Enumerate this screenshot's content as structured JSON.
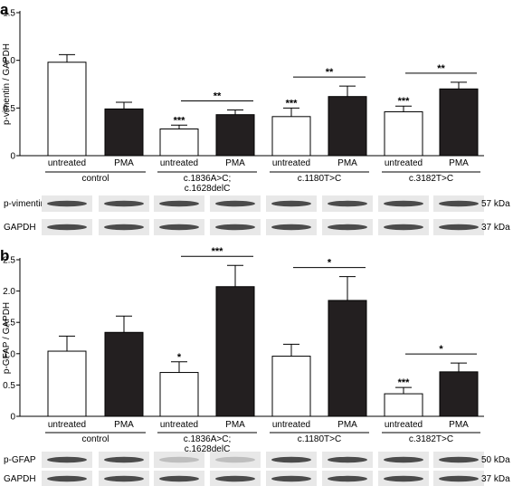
{
  "chart_data": [
    {
      "type": "bar",
      "panel": "a",
      "ylabel": "p-vimentin / GAPDH",
      "ylim": [
        0,
        1.5
      ],
      "yticks": [
        "0",
        "0.5",
        "1.0",
        "1.5"
      ],
      "categories": [
        "untreated",
        "PMA",
        "untreated",
        "PMA",
        "untreated",
        "PMA",
        "untreated",
        "PMA"
      ],
      "groups": [
        "control",
        "c.1836A>C;\nc.1628delC",
        "c.1180T>C",
        "c.3182T>C"
      ],
      "series": [
        {
          "values": [
            0.98,
            0.49,
            0.28,
            0.43,
            0.41,
            0.62,
            0.46,
            0.7
          ],
          "errors": [
            0.08,
            0.07,
            0.04,
            0.05,
            0.09,
            0.11,
            0.06,
            0.07
          ],
          "fill": [
            "#ffffff",
            "#231f20",
            "#ffffff",
            "#231f20",
            "#ffffff",
            "#231f20",
            "#ffffff",
            "#231f20"
          ]
        }
      ],
      "bar_sig": [
        "",
        "",
        "***",
        "",
        "***",
        "",
        "***",
        ""
      ],
      "brackets": [
        "**",
        "**",
        "**"
      ],
      "blots": [
        {
          "label": "p-vimentin",
          "kda": "57 kDa"
        },
        {
          "label": "GAPDH",
          "kda": "37 kDa"
        }
      ]
    },
    {
      "type": "bar",
      "panel": "b",
      "ylabel": "p-GFAP / GAPDH",
      "ylim": [
        0,
        2.5
      ],
      "yticks": [
        "0",
        "0.5",
        "1.0",
        "1.5",
        "2.0",
        "2.5"
      ],
      "categories": [
        "untreated",
        "PMA",
        "untreated",
        "PMA",
        "untreated",
        "PMA",
        "untreated",
        "PMA"
      ],
      "groups": [
        "control",
        "c.1836A>C;\nc.1628delC",
        "c.1180T>C",
        "c.3182T>C"
      ],
      "series": [
        {
          "values": [
            1.04,
            1.34,
            0.7,
            2.07,
            0.96,
            1.85,
            0.36,
            0.71
          ],
          "errors": [
            0.24,
            0.26,
            0.17,
            0.34,
            0.19,
            0.38,
            0.1,
            0.14
          ],
          "fill": [
            "#ffffff",
            "#231f20",
            "#ffffff",
            "#231f20",
            "#ffffff",
            "#231f20",
            "#ffffff",
            "#231f20"
          ]
        }
      ],
      "bar_sig": [
        "",
        "",
        "*",
        "",
        "",
        "",
        "***",
        ""
      ],
      "brackets": [
        "***",
        "*",
        "*"
      ],
      "blots": [
        {
          "label": "p-GFAP",
          "kda": "50 kDa"
        },
        {
          "label": "GAPDH",
          "kda": "37 kDa"
        }
      ]
    }
  ]
}
